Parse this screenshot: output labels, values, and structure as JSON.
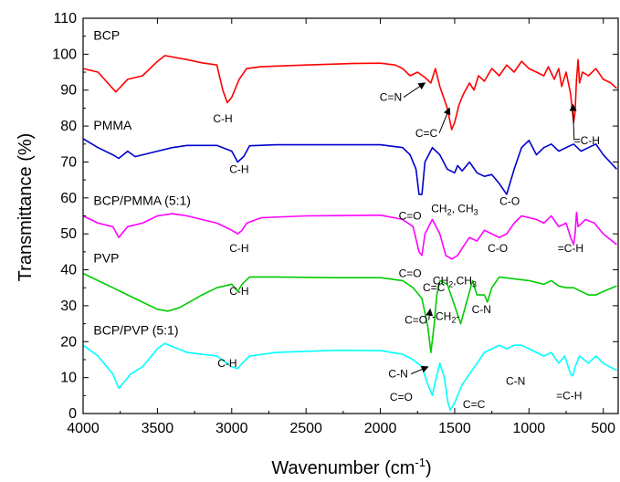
{
  "chart_data": {
    "type": "line",
    "title": "",
    "xlabel": "Wavenumber (cm",
    "xlabel_sup": "-1",
    "xlabel_close": ")",
    "ylabel": "Transmittance (%)",
    "xlim": [
      4000,
      400
    ],
    "ylim": [
      0,
      110
    ],
    "x_reversed": true,
    "grid": false,
    "x_ticks": [
      4000,
      3500,
      3000,
      2500,
      2000,
      1500,
      1000,
      500
    ],
    "y_ticks": [
      0,
      10,
      20,
      30,
      40,
      50,
      60,
      70,
      80,
      90,
      100,
      110
    ],
    "series": [
      {
        "name": "BCP",
        "color": "#ff0000",
        "points": [
          [
            4000,
            96
          ],
          [
            3900,
            95
          ],
          [
            3780,
            89.5
          ],
          [
            3700,
            93
          ],
          [
            3600,
            94
          ],
          [
            3500,
            98
          ],
          [
            3450,
            99.6
          ],
          [
            3300,
            98.5
          ],
          [
            3200,
            97.6
          ],
          [
            3100,
            97
          ],
          [
            3060,
            90
          ],
          [
            3030,
            86.5
          ],
          [
            3000,
            88
          ],
          [
            2950,
            93
          ],
          [
            2900,
            96
          ],
          [
            2800,
            96.5
          ],
          [
            2500,
            97
          ],
          [
            2200,
            97.4
          ],
          [
            2000,
            97.5
          ],
          [
            1900,
            97
          ],
          [
            1850,
            96
          ],
          [
            1800,
            94
          ],
          [
            1750,
            95
          ],
          [
            1700,
            93.5
          ],
          [
            1660,
            92
          ],
          [
            1630,
            96
          ],
          [
            1600,
            91
          ],
          [
            1550,
            85
          ],
          [
            1520,
            79
          ],
          [
            1500,
            81
          ],
          [
            1470,
            86
          ],
          [
            1440,
            89
          ],
          [
            1400,
            92
          ],
          [
            1370,
            90
          ],
          [
            1340,
            94
          ],
          [
            1300,
            92.5
          ],
          [
            1250,
            96
          ],
          [
            1200,
            94
          ],
          [
            1150,
            97
          ],
          [
            1100,
            95
          ],
          [
            1050,
            98
          ],
          [
            1000,
            96
          ],
          [
            950,
            95
          ],
          [
            900,
            94
          ],
          [
            870,
            96.5
          ],
          [
            830,
            93
          ],
          [
            800,
            96
          ],
          [
            780,
            91
          ],
          [
            750,
            95
          ],
          [
            720,
            89
          ],
          [
            700,
            81
          ],
          [
            690,
            84
          ],
          [
            680,
            93
          ],
          [
            670,
            98.5
          ],
          [
            660,
            92
          ],
          [
            640,
            95
          ],
          [
            600,
            94
          ],
          [
            550,
            96
          ],
          [
            500,
            93
          ],
          [
            450,
            92
          ],
          [
            410,
            90.5
          ]
        ]
      },
      {
        "name": "PMMA",
        "color": "#0000cc",
        "points": [
          [
            4000,
            76.5
          ],
          [
            3900,
            74
          ],
          [
            3800,
            72
          ],
          [
            3760,
            71
          ],
          [
            3700,
            73
          ],
          [
            3650,
            71.5
          ],
          [
            3600,
            72
          ],
          [
            3500,
            73
          ],
          [
            3400,
            74
          ],
          [
            3300,
            74.6
          ],
          [
            3100,
            74.6
          ],
          [
            3000,
            73
          ],
          [
            2960,
            70
          ],
          [
            2920,
            71.5
          ],
          [
            2880,
            74.5
          ],
          [
            2700,
            74.8
          ],
          [
            2300,
            74.8
          ],
          [
            2000,
            74.8
          ],
          [
            1850,
            74
          ],
          [
            1800,
            72
          ],
          [
            1760,
            68
          ],
          [
            1740,
            61
          ],
          [
            1720,
            61
          ],
          [
            1700,
            70
          ],
          [
            1650,
            74
          ],
          [
            1600,
            72
          ],
          [
            1550,
            68
          ],
          [
            1500,
            67
          ],
          [
            1480,
            69
          ],
          [
            1450,
            67.5
          ],
          [
            1400,
            70
          ],
          [
            1350,
            67
          ],
          [
            1300,
            66
          ],
          [
            1250,
            66.5
          ],
          [
            1200,
            64
          ],
          [
            1150,
            61
          ],
          [
            1100,
            68
          ],
          [
            1050,
            74
          ],
          [
            1000,
            76
          ],
          [
            950,
            72
          ],
          [
            900,
            74
          ],
          [
            850,
            75
          ],
          [
            800,
            73
          ],
          [
            750,
            74
          ],
          [
            700,
            75
          ],
          [
            650,
            73
          ],
          [
            600,
            74
          ],
          [
            550,
            75
          ],
          [
            500,
            72
          ],
          [
            410,
            68
          ]
        ]
      },
      {
        "name": "BCP/PMMA (5:1)",
        "color": "#ff00ff",
        "points": [
          [
            4000,
            55
          ],
          [
            3900,
            53
          ],
          [
            3800,
            52
          ],
          [
            3760,
            49
          ],
          [
            3700,
            52
          ],
          [
            3600,
            53
          ],
          [
            3500,
            55
          ],
          [
            3400,
            55.6
          ],
          [
            3300,
            55
          ],
          [
            3100,
            53
          ],
          [
            3000,
            51
          ],
          [
            2960,
            50
          ],
          [
            2930,
            51
          ],
          [
            2900,
            53
          ],
          [
            2800,
            54.5
          ],
          [
            2500,
            55
          ],
          [
            2000,
            55.2
          ],
          [
            1850,
            54
          ],
          [
            1780,
            52
          ],
          [
            1740,
            45
          ],
          [
            1720,
            44
          ],
          [
            1700,
            50
          ],
          [
            1650,
            54
          ],
          [
            1600,
            50
          ],
          [
            1560,
            44
          ],
          [
            1520,
            43
          ],
          [
            1480,
            44
          ],
          [
            1450,
            46
          ],
          [
            1400,
            49
          ],
          [
            1350,
            48
          ],
          [
            1300,
            51
          ],
          [
            1250,
            50
          ],
          [
            1200,
            49
          ],
          [
            1150,
            50
          ],
          [
            1100,
            53
          ],
          [
            1050,
            55
          ],
          [
            950,
            54
          ],
          [
            900,
            53
          ],
          [
            850,
            55
          ],
          [
            800,
            52
          ],
          [
            750,
            53
          ],
          [
            720,
            49
          ],
          [
            700,
            47
          ],
          [
            690,
            50
          ],
          [
            680,
            56
          ],
          [
            670,
            52
          ],
          [
            620,
            54
          ],
          [
            560,
            53
          ],
          [
            500,
            50
          ],
          [
            410,
            47
          ]
        ]
      },
      {
        "name": "PVP",
        "color": "#00cc00",
        "points": [
          [
            4000,
            39
          ],
          [
            3900,
            37
          ],
          [
            3800,
            35
          ],
          [
            3700,
            33
          ],
          [
            3600,
            31
          ],
          [
            3500,
            29
          ],
          [
            3430,
            28.5
          ],
          [
            3350,
            29.5
          ],
          [
            3200,
            33
          ],
          [
            3100,
            35
          ],
          [
            3000,
            36
          ],
          [
            2960,
            34
          ],
          [
            2930,
            36
          ],
          [
            2880,
            38
          ],
          [
            2700,
            38
          ],
          [
            2300,
            37.8
          ],
          [
            2000,
            37.8
          ],
          [
            1850,
            37
          ],
          [
            1780,
            35
          ],
          [
            1720,
            32
          ],
          [
            1680,
            24
          ],
          [
            1660,
            17
          ],
          [
            1640,
            24
          ],
          [
            1620,
            33
          ],
          [
            1600,
            37
          ],
          [
            1550,
            36
          ],
          [
            1500,
            30
          ],
          [
            1460,
            25
          ],
          [
            1420,
            31
          ],
          [
            1380,
            37
          ],
          [
            1350,
            33
          ],
          [
            1300,
            33
          ],
          [
            1280,
            31
          ],
          [
            1250,
            35
          ],
          [
            1200,
            38
          ],
          [
            1000,
            37
          ],
          [
            900,
            36
          ],
          [
            850,
            37
          ],
          [
            800,
            35.5
          ],
          [
            750,
            35
          ],
          [
            700,
            35
          ],
          [
            650,
            34
          ],
          [
            600,
            33
          ],
          [
            550,
            33
          ],
          [
            500,
            34
          ],
          [
            410,
            35.5
          ]
        ]
      },
      {
        "name": "BCP/PVP (5:1)",
        "color": "#00ffff",
        "points": [
          [
            4000,
            19
          ],
          [
            3900,
            16
          ],
          [
            3800,
            11
          ],
          [
            3760,
            7
          ],
          [
            3720,
            9
          ],
          [
            3680,
            11
          ],
          [
            3600,
            13
          ],
          [
            3500,
            18
          ],
          [
            3450,
            19.5
          ],
          [
            3300,
            17
          ],
          [
            3100,
            16
          ],
          [
            3000,
            13
          ],
          [
            2960,
            12.5
          ],
          [
            2930,
            14
          ],
          [
            2880,
            16
          ],
          [
            2700,
            17
          ],
          [
            2300,
            17.6
          ],
          [
            2000,
            17.5
          ],
          [
            1850,
            16.5
          ],
          [
            1780,
            15
          ],
          [
            1720,
            13
          ],
          [
            1680,
            8
          ],
          [
            1650,
            5
          ],
          [
            1630,
            9
          ],
          [
            1600,
            14
          ],
          [
            1570,
            10
          ],
          [
            1545,
            3
          ],
          [
            1530,
            1
          ],
          [
            1500,
            3
          ],
          [
            1450,
            8
          ],
          [
            1400,
            11
          ],
          [
            1350,
            14
          ],
          [
            1300,
            17
          ],
          [
            1250,
            18
          ],
          [
            1200,
            19
          ],
          [
            1150,
            18
          ],
          [
            1100,
            19
          ],
          [
            1050,
            19
          ],
          [
            1000,
            18
          ],
          [
            950,
            17
          ],
          [
            900,
            16
          ],
          [
            850,
            17
          ],
          [
            800,
            14
          ],
          [
            760,
            16
          ],
          [
            720,
            11
          ],
          [
            705,
            10.5
          ],
          [
            690,
            13
          ],
          [
            660,
            16
          ],
          [
            600,
            14
          ],
          [
            550,
            16
          ],
          [
            500,
            14
          ],
          [
            410,
            12
          ]
        ]
      }
    ],
    "series_labels": [
      {
        "text": "BCP",
        "series": 0,
        "x": 3930,
        "y": 104
      },
      {
        "text": "PMMA",
        "series": 1,
        "x": 3930,
        "y": 79
      },
      {
        "text": "BCP/PMMA (5:1)",
        "series": 2,
        "x": 3930,
        "y": 58
      },
      {
        "text": "PVP",
        "series": 3,
        "x": 3930,
        "y": 42
      },
      {
        "text": "BCP/PVP (5:1)",
        "series": 4,
        "x": 3930,
        "y": 22
      }
    ],
    "annotations": [
      {
        "text": "C-H",
        "x": 3060,
        "y": 81
      },
      {
        "text": "C=N",
        "x": 1930,
        "y": 87,
        "arrow_to": [
          1700,
          92
        ]
      },
      {
        "text": "C=C",
        "x": 1690,
        "y": 77,
        "arrow_to": [
          1535,
          85
        ]
      },
      {
        "text": "=C-H",
        "x": 610,
        "y": 75,
        "arrow_to": [
          705,
          86
        ]
      },
      {
        "text": "C-H",
        "x": 2950,
        "y": 67
      },
      {
        "text": "C=O",
        "x": 1800,
        "y": 54
      },
      {
        "text": "CH",
        "sub": "2",
        "text2": ", CH",
        "sub2": "3",
        "x": 1500,
        "y": 56
      },
      {
        "text": "C-O",
        "x": 1130,
        "y": 58
      },
      {
        "text": "C-H",
        "x": 2950,
        "y": 45
      },
      {
        "text": "C=O",
        "x": 1800,
        "y": 38
      },
      {
        "text": "C=C",
        "x": 1640,
        "y": 34
      },
      {
        "text": "CH",
        "sub": "2",
        "text2": ",CH",
        "sub2": "3",
        "x": 1500,
        "y": 36
      },
      {
        "text": "C-O",
        "x": 1210,
        "y": 45
      },
      {
        "text": "=C-H",
        "x": 720,
        "y": 45
      },
      {
        "text": "C-H",
        "x": 2950,
        "y": 33
      },
      {
        "text": "C=O",
        "x": 1760,
        "y": 25,
        "arrow_to": [
          1665,
          29
        ]
      },
      {
        "text": "-CH",
        "sub": "2",
        "text2": "-",
        "x": 1560,
        "y": 26
      },
      {
        "text": "C-N",
        "x": 1320,
        "y": 28
      },
      {
        "text": "C-H",
        "x": 3030,
        "y": 13
      },
      {
        "text": "C-N",
        "x": 1880,
        "y": 10,
        "arrow_to": [
          1680,
          13
        ]
      },
      {
        "text": "C=O",
        "x": 1860,
        "y": 3.5
      },
      {
        "text": "C=C",
        "x": 1370,
        "y": 1.5
      },
      {
        "text": "C-N",
        "x": 1090,
        "y": 8
      },
      {
        "text": "=C-H",
        "x": 730,
        "y": 4
      }
    ]
  }
}
